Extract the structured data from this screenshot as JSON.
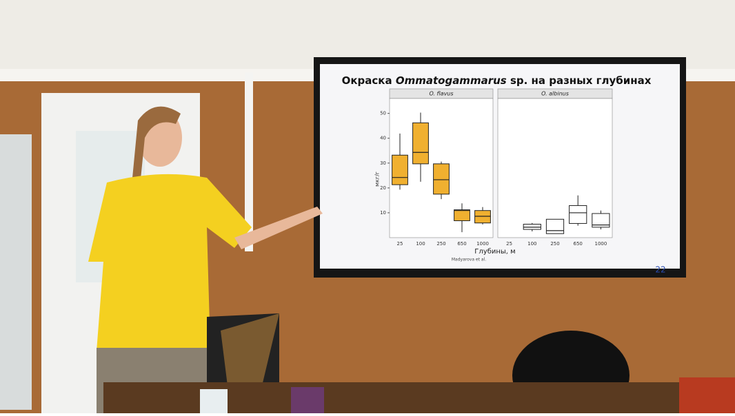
{
  "slide": {
    "title_prefix": "Окраска",
    "title_species": "Ommatogammarus",
    "title_suffix": "sp. на разных глубинах",
    "y_label": "мкг/г",
    "x_label": "Глубины, м",
    "credit": "Madyarova et al.",
    "number": "22"
  },
  "chart_data": [
    {
      "type": "box",
      "panel": "O. flavus",
      "color": "#f0b030",
      "categories": [
        "25",
        "100",
        "250",
        "650",
        "1000"
      ],
      "low": [
        19.3,
        22.5,
        15.5,
        2.2,
        5.3
      ],
      "q1": [
        21.3,
        29.7,
        17.5,
        6.8,
        5.9
      ],
      "median": [
        24.2,
        34.3,
        23.3,
        10.9,
        8.6
      ],
      "q3": [
        33.2,
        46.2,
        29.7,
        11.2,
        10.9
      ],
      "high": [
        41.9,
        50.3,
        30.6,
        13.8,
        12.3
      ],
      "ylim": [
        0,
        56
      ],
      "yticks": [
        10,
        20,
        30,
        40,
        50
      ]
    },
    {
      "type": "box",
      "panel": "O. albinus",
      "color": "#ffffff",
      "categories": [
        "25",
        "100",
        "250",
        "650",
        "1000"
      ],
      "low": [
        null,
        2.5,
        1.6,
        4.8,
        3.3
      ],
      "q1": [
        null,
        3.3,
        1.6,
        5.7,
        4.2
      ],
      "median": [
        null,
        4.2,
        2.8,
        10,
        5.1
      ],
      "q3": [
        null,
        5.4,
        7.4,
        12.9,
        9.7
      ],
      "high": [
        null,
        5.9,
        7.4,
        17,
        10.9
      ],
      "ylim": [
        0,
        56
      ]
    }
  ]
}
